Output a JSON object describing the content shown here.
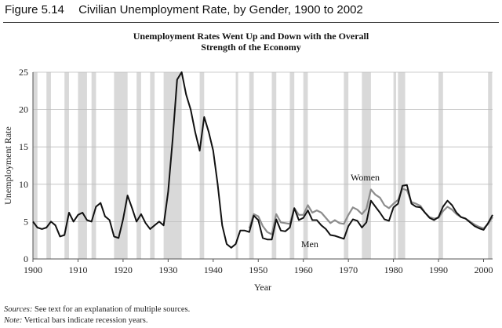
{
  "figure": {
    "number": "Figure 5.14",
    "caption": "Civilian Unemployment Rate, by Gender, 1900 to 2002"
  },
  "chart_data": {
    "type": "line",
    "title_lines": [
      "Unemployment Rates Went Up and Down with the Overall",
      "Strength of the Economy"
    ],
    "xlabel": "Year",
    "ylabel": "Unemployment Rate",
    "xlim": [
      1900,
      2002
    ],
    "ylim": [
      0,
      25
    ],
    "xticks": [
      1900,
      1910,
      1920,
      1930,
      1940,
      1950,
      1960,
      1970,
      1980,
      1990,
      2000
    ],
    "yticks": [
      0,
      5,
      10,
      15,
      20,
      25
    ],
    "grid": true,
    "recession_bars": [
      [
        1900,
        1901
      ],
      [
        1903,
        1904
      ],
      [
        1907,
        1908
      ],
      [
        1910,
        1912
      ],
      [
        1913,
        1914
      ],
      [
        1918,
        1921
      ],
      [
        1923,
        1924
      ],
      [
        1926,
        1927
      ],
      [
        1929,
        1933
      ],
      [
        1937,
        1938
      ],
      [
        1945,
        1945.5
      ],
      [
        1948,
        1949
      ],
      [
        1953,
        1954
      ],
      [
        1957,
        1958
      ],
      [
        1960,
        1961
      ],
      [
        1969,
        1970
      ],
      [
        1973,
        1975
      ],
      [
        1980,
        1980.6
      ],
      [
        1981,
        1982.6
      ],
      [
        1990,
        1991
      ],
      [
        2001,
        2001.9
      ]
    ],
    "colors": {
      "men": "#111111",
      "women": "#8c8c8c",
      "bars": "#d9d9d9"
    },
    "series": [
      {
        "name": "Men",
        "x": [
          1900,
          1901,
          1902,
          1903,
          1904,
          1905,
          1906,
          1907,
          1908,
          1909,
          1910,
          1911,
          1912,
          1913,
          1914,
          1915,
          1916,
          1917,
          1918,
          1919,
          1920,
          1921,
          1922,
          1923,
          1924,
          1925,
          1926,
          1927,
          1928,
          1929,
          1930,
          1931,
          1932,
          1933,
          1934,
          1935,
          1936,
          1937,
          1938,
          1939,
          1940,
          1941,
          1942,
          1943,
          1944,
          1945,
          1946,
          1947,
          1948,
          1949,
          1950,
          1951,
          1952,
          1953,
          1954,
          1955,
          1956,
          1957,
          1958,
          1959,
          1960,
          1961,
          1962,
          1963,
          1964,
          1965,
          1966,
          1967,
          1968,
          1969,
          1970,
          1971,
          1972,
          1973,
          1974,
          1975,
          1976,
          1977,
          1978,
          1979,
          1980,
          1981,
          1982,
          1983,
          1984,
          1985,
          1986,
          1987,
          1988,
          1989,
          1990,
          1991,
          1992,
          1993,
          1994,
          1995,
          1996,
          1997,
          1998,
          1999,
          2000,
          2001,
          2002
        ],
        "values": [
          5,
          4.2,
          4,
          4.2,
          5,
          4.5,
          3,
          3.2,
          6.2,
          5,
          5.9,
          6.2,
          5.2,
          5,
          7,
          7.5,
          5.7,
          5.2,
          3,
          2.8,
          5.3,
          8.5,
          6.8,
          5,
          6,
          4.8,
          4,
          4.5,
          5,
          4.5,
          9,
          16,
          24,
          25,
          22,
          20,
          17,
          14.5,
          19,
          17,
          14.5,
          10,
          4.5,
          2,
          1.5,
          2,
          3.8,
          3.8,
          3.6,
          5.8,
          5.2,
          2.8,
          2.6,
          2.6,
          5.3,
          3.8,
          3.7,
          4.2,
          6.8,
          5.2,
          5.5,
          6.5,
          5.2,
          5.2,
          4.5,
          4,
          3.2,
          3.1,
          2.9,
          2.7,
          4.4,
          5.3,
          5.1,
          4.2,
          4.9,
          7.8,
          7,
          6.2,
          5.3,
          5.1,
          6.9,
          7.4,
          9.8,
          9.9,
          7.4,
          7,
          6.9,
          6.2,
          5.5,
          5.2,
          5.6,
          7,
          7.8,
          7.2,
          6.2,
          5.6,
          5.4,
          4.9,
          4.4,
          4.1,
          3.9,
          4.8,
          5.9
        ]
      },
      {
        "name": "Women",
        "x": [
          1948,
          1949,
          1950,
          1951,
          1952,
          1953,
          1954,
          1955,
          1956,
          1957,
          1958,
          1959,
          1960,
          1961,
          1962,
          1963,
          1964,
          1965,
          1966,
          1967,
          1968,
          1969,
          1970,
          1971,
          1972,
          1973,
          1974,
          1975,
          1976,
          1977,
          1978,
          1979,
          1980,
          1981,
          1982,
          1983,
          1984,
          1985,
          1986,
          1987,
          1988,
          1989,
          1990,
          1991,
          1992,
          1993,
          1994,
          1995,
          1996,
          1997,
          1998,
          1999,
          2000,
          2001,
          2002
        ],
        "values": [
          4.1,
          6,
          5.7,
          4.4,
          3.6,
          3.3,
          6,
          4.9,
          4.8,
          4.7,
          6.8,
          5.9,
          5.9,
          7.2,
          6.2,
          6.5,
          6.2,
          5.5,
          4.8,
          5.2,
          4.8,
          4.7,
          5.9,
          6.9,
          6.6,
          6,
          6.7,
          9.3,
          8.6,
          8.2,
          7.2,
          6.8,
          7.4,
          7.9,
          9.4,
          9.2,
          7.6,
          7.4,
          7.1,
          6.2,
          5.6,
          5.4,
          5.5,
          6.4,
          7,
          6.6,
          6,
          5.6,
          5.4,
          5,
          4.6,
          4.3,
          4.1,
          4.7,
          5.6
        ]
      }
    ],
    "series_labels": {
      "women": "Women",
      "men": "Men"
    }
  },
  "footnotes": {
    "sources_label": "Sources:",
    "sources_text": " See text for an explanation of multiple sources.",
    "note_label": "Note:",
    "note_text": " Vertical bars indicate recession years."
  }
}
